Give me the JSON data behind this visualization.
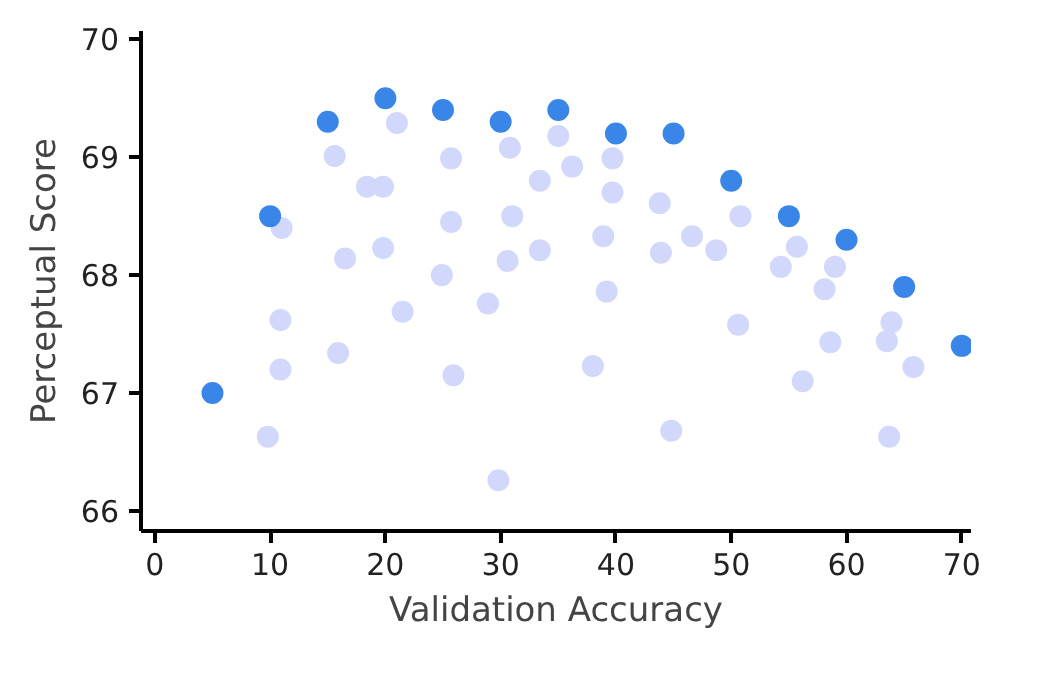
{
  "chart_data": {
    "type": "scatter",
    "xlabel": "Validation Accuracy",
    "ylabel": "Perceptual Score",
    "xlim": [
      -1.2,
      70.8
    ],
    "ylim": [
      65.83,
      70.07
    ],
    "xticks": [
      0,
      10,
      20,
      30,
      40,
      50,
      60,
      70
    ],
    "yticks": [
      66,
      67,
      68,
      69,
      70
    ],
    "grid": false,
    "marker": "circle",
    "series": [
      {
        "color": "#d2d8fb",
        "x": [
          11.0,
          10.9,
          10.9,
          9.8,
          15.6,
          16.5,
          15.9,
          18.4,
          19.8,
          19.8,
          21.5,
          21.0,
          25.7,
          25.7,
          24.9,
          25.9,
          28.9,
          29.8,
          30.8,
          31.0,
          30.6,
          33.4,
          33.4,
          35.0,
          36.2,
          39.7,
          39.7,
          38.9,
          39.2,
          38.0,
          43.8,
          43.9,
          46.6,
          48.7,
          50.8,
          50.6,
          44.8,
          55.7,
          54.3,
          56.2,
          59.0,
          58.1,
          58.6,
          63.9,
          63.5,
          65.8,
          63.7
        ],
        "values": [
          68.4,
          67.62,
          67.2,
          66.63,
          69.01,
          68.14,
          67.34,
          68.75,
          68.75,
          68.23,
          67.69,
          69.29,
          68.99,
          68.45,
          68.0,
          67.15,
          67.76,
          66.26,
          69.08,
          68.5,
          68.12,
          68.8,
          68.21,
          69.18,
          68.92,
          68.99,
          68.7,
          68.33,
          67.86,
          67.23,
          68.61,
          68.19,
          68.33,
          68.21,
          68.5,
          67.58,
          66.68,
          68.24,
          68.07,
          67.1,
          68.07,
          67.88,
          67.43,
          67.6,
          67.44,
          67.22,
          66.63
        ]
      },
      {
        "color": "#3a86e8",
        "x": [
          5,
          10,
          15,
          20,
          25,
          30,
          35,
          40,
          45,
          50,
          55,
          60,
          65,
          70
        ],
        "values": [
          67.0,
          68.5,
          69.3,
          69.5,
          69.4,
          69.3,
          69.4,
          69.2,
          69.2,
          68.8,
          68.5,
          68.3,
          67.9,
          67.4
        ]
      }
    ]
  }
}
